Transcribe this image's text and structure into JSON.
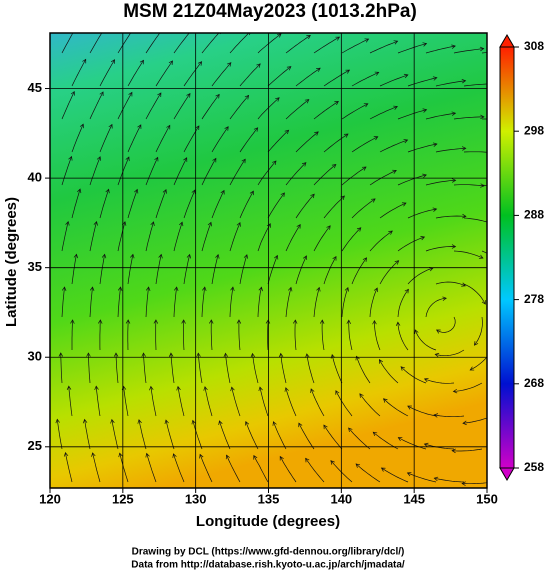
{
  "chart_data": {
    "type": "map",
    "title": "MSM 21Z04May2023 (1013.2hPa)",
    "x_label": "Longitude (degrees)",
    "y_label": "Latitude  (degrees)",
    "xlim": [
      120,
      150
    ],
    "ylim": [
      22.7,
      48.1
    ],
    "xticks": [
      120,
      125,
      130,
      135,
      140,
      145,
      150
    ],
    "yticks": [
      25,
      30,
      35,
      40,
      45
    ],
    "grid": true,
    "colorbar": {
      "lim": [
        258,
        308
      ],
      "ticks": [
        258,
        268,
        278,
        288,
        298,
        308
      ]
    }
  },
  "footer": [
    "Drawing by DCL (https://www.gfd-dennou.org/library/dcl/)",
    "Data from http://database.rish.kyoto-u.ac.jp/arch/jmadata/"
  ]
}
